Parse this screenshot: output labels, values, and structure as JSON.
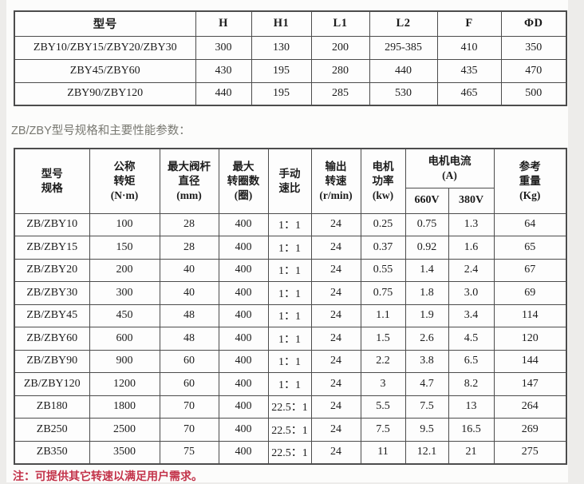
{
  "intro": {
    "text": "ZB/ZBY型号规格和主要性能参数："
  },
  "table1": {
    "columns": [
      "型号",
      "H",
      "H1",
      "L1",
      "L2",
      "F",
      "ΦD"
    ],
    "rows": [
      [
        "ZBY10/ZBY15/ZBY20/ZBY30",
        "300",
        "130",
        "200",
        "295-385",
        "410",
        "350"
      ],
      [
        "ZBY45/ZBY60",
        "430",
        "195",
        "280",
        "440",
        "435",
        "470"
      ],
      [
        "ZBY90/ZBY120",
        "440",
        "195",
        "285",
        "530",
        "465",
        "500"
      ]
    ]
  },
  "table2": {
    "header": {
      "model": [
        "型号",
        "规格"
      ],
      "torque": [
        "公称",
        "转矩",
        "(N·m)"
      ],
      "stem": [
        "最大阀杆",
        "直径",
        "(mm)"
      ],
      "turns": [
        "最大",
        "转圈数",
        "(圈)"
      ],
      "ratio": [
        "手动",
        "速比"
      ],
      "speed": [
        "输出",
        "转速",
        "(r/min)"
      ],
      "power": [
        "电机",
        "功率",
        "(kw)"
      ],
      "current": [
        "电机电流",
        "(A)"
      ],
      "current_sub": [
        "660V",
        "380V"
      ],
      "weight": [
        "参考",
        "重量",
        "(Kg)"
      ]
    },
    "rows": [
      [
        "ZB/ZBY10",
        "100",
        "28",
        "400",
        "1：1",
        "24",
        "0.25",
        "0.75",
        "1.3",
        "64"
      ],
      [
        "ZB/ZBY15",
        "150",
        "28",
        "400",
        "1：1",
        "24",
        "0.37",
        "0.92",
        "1.6",
        "65"
      ],
      [
        "ZB/ZBY20",
        "200",
        "40",
        "400",
        "1：1",
        "24",
        "0.55",
        "1.4",
        "2.4",
        "67"
      ],
      [
        "ZB/ZBY30",
        "300",
        "40",
        "400",
        "1：1",
        "24",
        "0.75",
        "1.8",
        "3.0",
        "69"
      ],
      [
        "ZB/ZBY45",
        "450",
        "48",
        "400",
        "1：1",
        "24",
        "1.1",
        "1.9",
        "3.4",
        "114"
      ],
      [
        "ZB/ZBY60",
        "600",
        "48",
        "400",
        "1：1",
        "24",
        "1.5",
        "2.6",
        "4.5",
        "120"
      ],
      [
        "ZB/ZBY90",
        "900",
        "60",
        "400",
        "1：1",
        "24",
        "2.2",
        "3.8",
        "6.5",
        "144"
      ],
      [
        "ZB/ZBY120",
        "1200",
        "60",
        "400",
        "1：1",
        "24",
        "3",
        "4.7",
        "8.2",
        "147"
      ],
      [
        "ZB180",
        "1800",
        "70",
        "400",
        "22.5：1",
        "24",
        "5.5",
        "7.5",
        "13",
        "264"
      ],
      [
        "ZB250",
        "2500",
        "70",
        "400",
        "22.5：1",
        "24",
        "7.5",
        "9.5",
        "16.5",
        "269"
      ],
      [
        "ZB350",
        "3500",
        "75",
        "400",
        "22.5：1",
        "24",
        "11",
        "12.1",
        "21",
        "275"
      ]
    ]
  },
  "note": {
    "text": "注：可提供其它转速以满足用户需求。"
  },
  "colors": {
    "page_bg": "#edecea",
    "content_bg": "#fcfcfb",
    "border": "#4c4c4c",
    "note_red": "#c3334a",
    "intro_gray": "#787871"
  }
}
